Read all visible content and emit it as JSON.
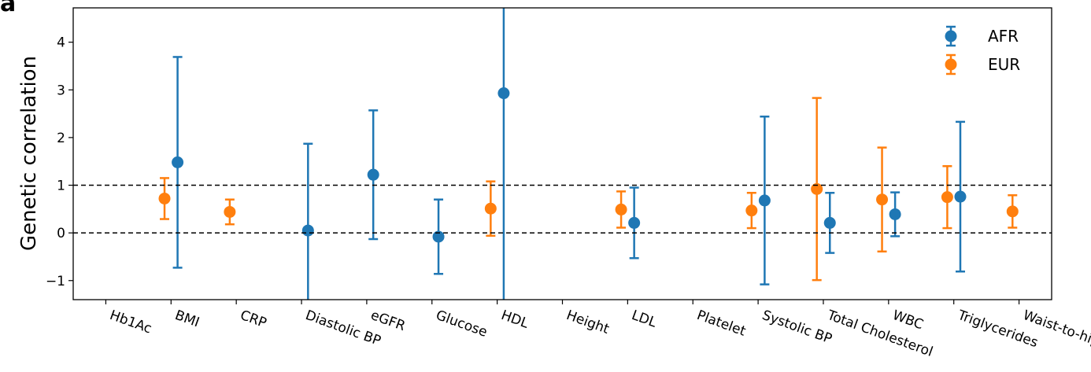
{
  "chart_data": {
    "type": "errorbar",
    "panel_label": "a",
    "y_label": "Genetic correlation",
    "categories": [
      "Hb1Ac",
      "BMI",
      "CRP",
      "Diastolic BP",
      "eGFR",
      "Glucose",
      "HDL",
      "Height",
      "LDL",
      "Platelet",
      "Systolic BP",
      "Total Cholesterol",
      "WBC",
      "Triglycerides",
      "Waist-to-hip ratio"
    ],
    "series": [
      {
        "name": "AFR",
        "color": "#1f77b4",
        "values": [
          null,
          1.48,
          null,
          0.05,
          1.22,
          -0.08,
          2.93,
          null,
          0.21,
          null,
          0.68,
          0.21,
          0.39,
          0.76,
          null
        ],
        "errors": [
          null,
          2.21,
          null,
          1.82,
          1.35,
          0.78,
          4.5,
          null,
          0.74,
          null,
          1.76,
          0.63,
          0.46,
          1.57,
          null
        ]
      },
      {
        "name": "EUR",
        "color": "#ff7f0e",
        "values": [
          null,
          0.72,
          0.44,
          null,
          null,
          null,
          0.51,
          null,
          0.49,
          null,
          0.47,
          0.92,
          0.7,
          0.75,
          0.45
        ],
        "errors": [
          null,
          0.43,
          0.26,
          null,
          null,
          null,
          0.57,
          null,
          0.38,
          null,
          0.37,
          1.91,
          1.09,
          0.65,
          0.34
        ]
      }
    ],
    "ylim": [
      -1.4,
      4.72
    ],
    "yticks": [
      {
        "value": -1,
        "label": "−1"
      },
      0,
      1,
      2,
      3,
      4
    ],
    "hlines": [
      0,
      1
    ],
    "legend": "upper right"
  }
}
